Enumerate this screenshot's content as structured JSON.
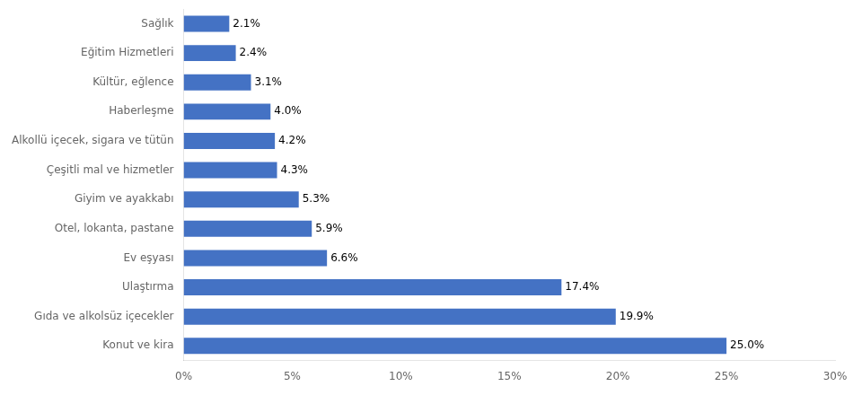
{
  "chart_data": {
    "type": "bar",
    "orientation": "horizontal",
    "categories": [
      "Konut ve kira",
      "Gıda ve alkolsüz içecekler",
      "Ulaştırma",
      "Ev eşyası",
      "Otel, lokanta, pastane",
      "Giyim ve ayakkabı",
      "Çeşitli mal ve hizmetler",
      "Alkollü içecek, sigara ve tütün",
      "Haberleşme",
      "Kültür, eğlence",
      "Eğitim Hizmetleri",
      "Sağlık"
    ],
    "values": [
      25.0,
      19.9,
      17.4,
      6.6,
      5.9,
      5.3,
      4.3,
      4.2,
      4.0,
      3.1,
      2.4,
      2.1
    ],
    "value_labels": [
      "25.0%",
      "19.9%",
      "17.4%",
      "6.6%",
      "5.9%",
      "5.3%",
      "4.3%",
      "4.2%",
      "4.0%",
      "3.1%",
      "2.4%",
      "2.1%"
    ],
    "data_labels": true,
    "color": "#4472C4",
    "xlim": [
      0,
      30
    ],
    "xticks": [
      {
        "value": 0,
        "label": "0%"
      },
      {
        "value": 5,
        "label": "5%"
      },
      {
        "value": 10,
        "label": "10%"
      },
      {
        "value": 15,
        "label": "15%"
      },
      {
        "value": 20,
        "label": "20%"
      },
      {
        "value": 25,
        "label": "25%"
      },
      {
        "value": 30,
        "label": "30%"
      }
    ],
    "grid": false
  }
}
